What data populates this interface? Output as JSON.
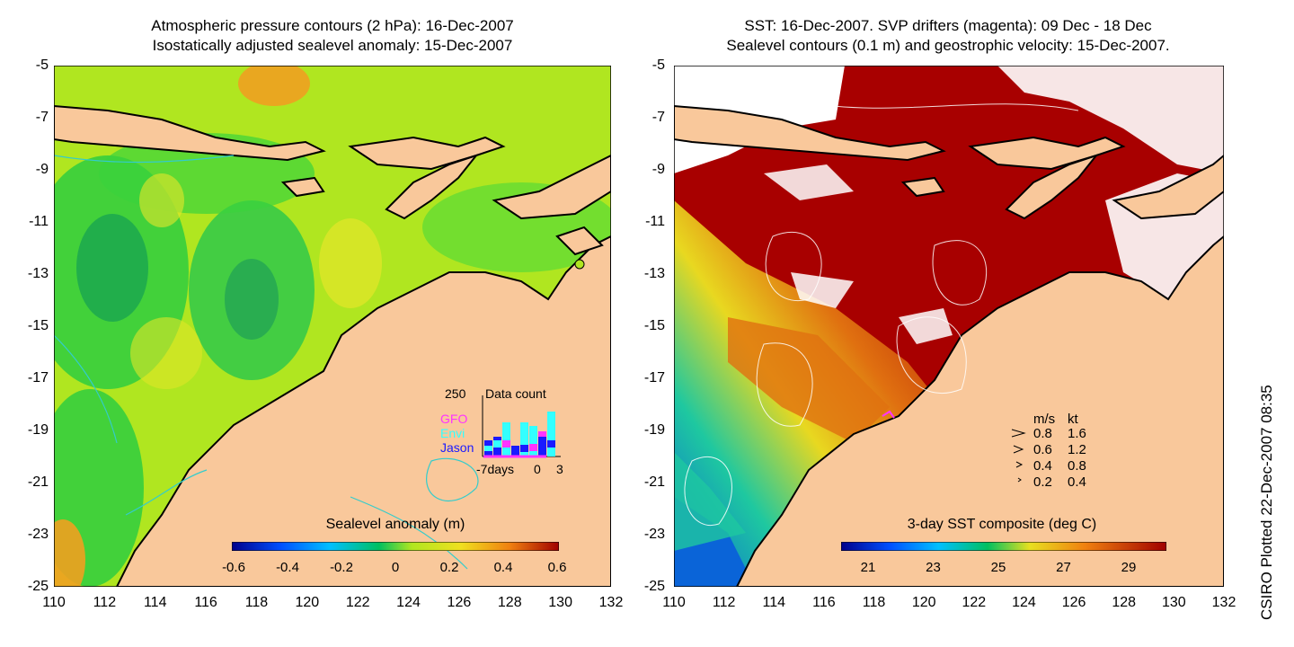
{
  "left": {
    "title_line1": "Atmospheric pressure contours (2 hPa): 16-Dec-2007",
    "title_line2": "Isostatically adjusted sealevel anomaly: 15-Dec-2007",
    "colorbar_title": "Sealevel anomaly (m)",
    "colorbar_ticks": [
      "-0.6",
      "-0.4",
      "-0.2",
      "0",
      "0.2",
      "0.4",
      "0.6"
    ],
    "data_count": {
      "ymax_label": "250",
      "title": "Data count",
      "satellites": [
        {
          "name": "GFO",
          "color": "#ff33ff"
        },
        {
          "name": "Envi",
          "color": "#33ffff"
        },
        {
          "name": "Jason",
          "color": "#1a1aff"
        }
      ],
      "x_labels": [
        "-7days",
        "0",
        "3"
      ]
    }
  },
  "right": {
    "title_line1": "SST: 16-Dec-2007. SVP drifters (magenta): 09 Dec - 18 Dec",
    "title_line2": "Sealevel contours (0.1 m) and geostrophic velocity: 15-Dec-2007.",
    "colorbar_title": "3-day SST composite (deg C)",
    "colorbar_ticks": [
      "21",
      "23",
      "25",
      "27",
      "29"
    ],
    "velocity_legend": {
      "header_ms": "m/s",
      "header_kt": "kt",
      "rows": [
        {
          "ms": "0.8",
          "kt": "1.6"
        },
        {
          "ms": "0.6",
          "kt": "1.2"
        },
        {
          "ms": "0.4",
          "kt": "0.8"
        },
        {
          "ms": "0.2",
          "kt": "0.4"
        }
      ]
    }
  },
  "y_ticks": [
    "-5",
    "-7",
    "-9",
    "-11",
    "-13",
    "-15",
    "-17",
    "-19",
    "-21",
    "-23",
    "-25"
  ],
  "x_ticks": [
    "110",
    "112",
    "114",
    "116",
    "118",
    "120",
    "122",
    "124",
    "126",
    "128",
    "130",
    "132"
  ],
  "credit": "CSIRO Plotted 22-Dec-2007 08:35",
  "colors": {
    "land": "#f9c89b",
    "sst_warm": "#a80000",
    "cloud": "#ffffff",
    "sla_base": "#b5e61d"
  }
}
